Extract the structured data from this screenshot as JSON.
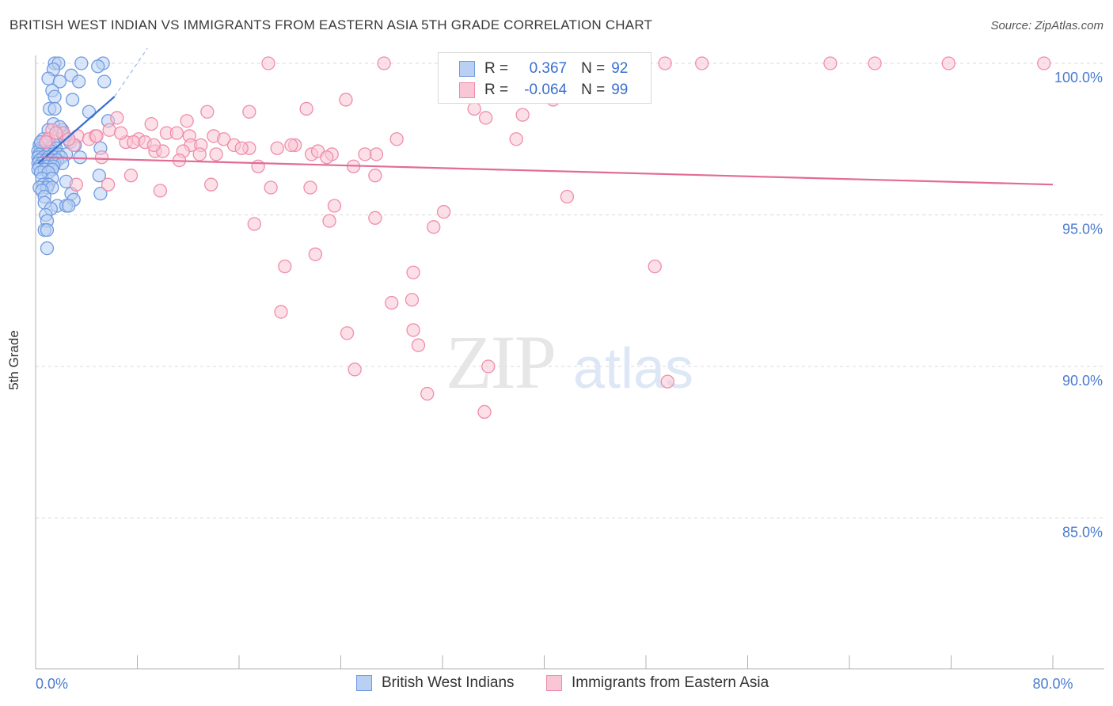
{
  "header": {
    "title": "BRITISH WEST INDIAN VS IMMIGRANTS FROM EASTERN ASIA 5TH GRADE CORRELATION CHART",
    "source": "Source: ZipAtlas.com"
  },
  "watermark": {
    "zip": "ZIP",
    "atlas": "atlas"
  },
  "stats_legend": {
    "rows": [
      {
        "r_label": "R =",
        "r_value": "0.367",
        "n_label": "N =",
        "n_value": "92",
        "color": "#6f9be0",
        "fill": "#b9d0f3"
      },
      {
        "r_label": "R =",
        "r_value": "-0.064",
        "n_label": "N =",
        "n_value": "99",
        "color": "#f08cab",
        "fill": "#f9c6d6"
      }
    ]
  },
  "bottom_legend": {
    "items": [
      {
        "label": "British West Indians",
        "color": "#6f9be0",
        "fill": "#b9d0f3"
      },
      {
        "label": "Immigrants from Eastern Asia",
        "color": "#f08cab",
        "fill": "#f9c6d6"
      }
    ]
  },
  "chart_data": {
    "type": "scatter",
    "title": "BRITISH WEST INDIAN VS IMMIGRANTS FROM EASTERN ASIA 5TH GRADE CORRELATION CHART",
    "xlabel": "",
    "ylabel": "5th Grade",
    "xlim": [
      0,
      80
    ],
    "ylim": [
      80.5,
      100.8
    ],
    "x_tick_labels": [
      {
        "value": 0,
        "label": "0.0%"
      },
      {
        "value": 80,
        "label": "80.0%"
      }
    ],
    "y_tick_labels": [
      {
        "value": 100,
        "label": "100.0%"
      },
      {
        "value": 95,
        "label": "95.0%"
      },
      {
        "value": 90,
        "label": "90.0%"
      },
      {
        "value": 85,
        "label": "85.0%"
      }
    ],
    "grid": true,
    "legend_position": "top-center",
    "series": [
      {
        "name": "British West Indians",
        "color": "#6f9be0",
        "fill": "#b9d0f3",
        "trend": {
          "x": [
            0.2,
            6.2
          ],
          "y": [
            96.7,
            98.9
          ],
          "extended_to": [
            8.8,
            100.5
          ]
        },
        "points": [
          [
            1.5,
            100.0
          ],
          [
            1.8,
            100.0
          ],
          [
            3.6,
            100.0
          ],
          [
            5.3,
            100.0
          ],
          [
            1.4,
            99.8
          ],
          [
            2.8,
            99.6
          ],
          [
            1.0,
            99.5
          ],
          [
            1.9,
            99.4
          ],
          [
            3.4,
            99.4
          ],
          [
            5.4,
            99.4
          ],
          [
            1.3,
            99.1
          ],
          [
            1.5,
            98.9
          ],
          [
            2.9,
            98.8
          ],
          [
            1.1,
            98.5
          ],
          [
            1.5,
            98.5
          ],
          [
            4.2,
            98.4
          ],
          [
            5.7,
            98.1
          ],
          [
            1.4,
            98.0
          ],
          [
            1.0,
            97.8
          ],
          [
            2.1,
            97.8
          ],
          [
            1.7,
            97.6
          ],
          [
            2.2,
            97.6
          ],
          [
            0.6,
            97.5
          ],
          [
            1.0,
            97.4
          ],
          [
            2.7,
            97.4
          ],
          [
            0.3,
            97.3
          ],
          [
            0.7,
            97.3
          ],
          [
            1.5,
            97.3
          ],
          [
            3.1,
            97.3
          ],
          [
            0.4,
            97.2
          ],
          [
            1.2,
            97.2
          ],
          [
            1.6,
            97.2
          ],
          [
            5.1,
            97.2
          ],
          [
            0.2,
            97.1
          ],
          [
            0.6,
            97.1
          ],
          [
            1.2,
            97.1
          ],
          [
            0.3,
            97.0
          ],
          [
            0.9,
            97.0
          ],
          [
            1.4,
            97.0
          ],
          [
            1.8,
            97.0
          ],
          [
            2.4,
            97.0
          ],
          [
            0.2,
            96.9
          ],
          [
            0.6,
            96.9
          ],
          [
            1.0,
            96.9
          ],
          [
            1.5,
            96.9
          ],
          [
            2.0,
            96.9
          ],
          [
            3.5,
            96.9
          ],
          [
            0.3,
            96.8
          ],
          [
            0.8,
            96.8
          ],
          [
            1.3,
            96.8
          ],
          [
            1.7,
            96.8
          ],
          [
            0.2,
            96.7
          ],
          [
            0.5,
            96.7
          ],
          [
            1.0,
            96.7
          ],
          [
            1.5,
            96.7
          ],
          [
            2.1,
            96.7
          ],
          [
            0.3,
            96.6
          ],
          [
            0.9,
            96.6
          ],
          [
            1.4,
            96.6
          ],
          [
            0.2,
            96.5
          ],
          [
            0.7,
            96.5
          ],
          [
            1.3,
            96.5
          ],
          [
            0.4,
            96.4
          ],
          [
            1.0,
            96.4
          ],
          [
            5.0,
            96.3
          ],
          [
            0.5,
            96.2
          ],
          [
            1.3,
            96.2
          ],
          [
            2.4,
            96.1
          ],
          [
            0.6,
            96.0
          ],
          [
            1.0,
            96.0
          ],
          [
            0.3,
            95.9
          ],
          [
            0.9,
            95.9
          ],
          [
            1.3,
            95.9
          ],
          [
            0.5,
            95.8
          ],
          [
            2.8,
            95.7
          ],
          [
            5.1,
            95.7
          ],
          [
            0.7,
            95.6
          ],
          [
            3.0,
            95.5
          ],
          [
            0.7,
            95.4
          ],
          [
            1.7,
            95.3
          ],
          [
            2.4,
            95.3
          ],
          [
            2.6,
            95.3
          ],
          [
            1.2,
            95.2
          ],
          [
            0.8,
            95.0
          ],
          [
            0.9,
            94.8
          ],
          [
            0.7,
            94.5
          ],
          [
            0.9,
            94.5
          ],
          [
            0.9,
            93.9
          ],
          [
            0.4,
            97.4
          ],
          [
            2.1,
            97.7
          ],
          [
            4.9,
            99.9
          ],
          [
            1.9,
            97.9
          ]
        ]
      },
      {
        "name": "Immigrants from Eastern Asia",
        "color": "#f08cab",
        "fill": "#f9c6d6",
        "trend": {
          "x": [
            0.5,
            80.0
          ],
          "y": [
            96.9,
            96.0
          ]
        },
        "points": [
          [
            18.3,
            100.0
          ],
          [
            27.4,
            100.0
          ],
          [
            40.3,
            100.0
          ],
          [
            52.4,
            100.0
          ],
          [
            62.5,
            100.0
          ],
          [
            66.0,
            100.0
          ],
          [
            71.8,
            100.0
          ],
          [
            79.3,
            100.0
          ],
          [
            44.0,
            100.0
          ],
          [
            49.5,
            100.0
          ],
          [
            24.4,
            98.8
          ],
          [
            40.7,
            98.8
          ],
          [
            21.3,
            98.5
          ],
          [
            34.5,
            98.5
          ],
          [
            13.5,
            98.4
          ],
          [
            16.8,
            98.4
          ],
          [
            38.3,
            98.3
          ],
          [
            6.4,
            98.2
          ],
          [
            11.9,
            98.1
          ],
          [
            35.4,
            98.2
          ],
          [
            9.1,
            98.0
          ],
          [
            1.3,
            97.8
          ],
          [
            2.2,
            97.7
          ],
          [
            5.8,
            97.8
          ],
          [
            10.3,
            97.7
          ],
          [
            11.1,
            97.7
          ],
          [
            12.1,
            97.6
          ],
          [
            14.0,
            97.6
          ],
          [
            14.8,
            97.5
          ],
          [
            3.3,
            97.6
          ],
          [
            4.7,
            97.6
          ],
          [
            8.1,
            97.5
          ],
          [
            28.4,
            97.5
          ],
          [
            1.0,
            97.5
          ],
          [
            7.1,
            97.4
          ],
          [
            7.7,
            97.4
          ],
          [
            8.6,
            97.4
          ],
          [
            12.2,
            97.3
          ],
          [
            13.0,
            97.3
          ],
          [
            15.6,
            97.3
          ],
          [
            16.8,
            97.2
          ],
          [
            19.0,
            97.2
          ],
          [
            20.4,
            97.3
          ],
          [
            0.8,
            97.4
          ],
          [
            4.2,
            97.5
          ],
          [
            9.4,
            97.1
          ],
          [
            10.0,
            97.1
          ],
          [
            11.6,
            97.1
          ],
          [
            12.9,
            97.0
          ],
          [
            14.2,
            97.0
          ],
          [
            21.7,
            97.0
          ],
          [
            22.2,
            97.1
          ],
          [
            23.3,
            97.0
          ],
          [
            25.9,
            97.0
          ],
          [
            26.8,
            97.0
          ],
          [
            22.9,
            96.9
          ],
          [
            25.0,
            96.6
          ],
          [
            11.3,
            96.8
          ],
          [
            17.5,
            96.6
          ],
          [
            5.2,
            96.9
          ],
          [
            26.7,
            96.3
          ],
          [
            7.5,
            96.3
          ],
          [
            3.2,
            96.0
          ],
          [
            5.7,
            96.0
          ],
          [
            13.8,
            96.0
          ],
          [
            18.5,
            95.9
          ],
          [
            21.6,
            95.9
          ],
          [
            9.8,
            95.8
          ],
          [
            41.8,
            95.6
          ],
          [
            23.5,
            95.3
          ],
          [
            32.1,
            95.1
          ],
          [
            23.1,
            94.8
          ],
          [
            26.7,
            94.9
          ],
          [
            17.2,
            94.7
          ],
          [
            31.3,
            94.6
          ],
          [
            22.0,
            93.7
          ],
          [
            19.6,
            93.3
          ],
          [
            48.7,
            93.3
          ],
          [
            29.7,
            93.1
          ],
          [
            29.6,
            92.2
          ],
          [
            28.0,
            92.1
          ],
          [
            19.3,
            91.8
          ],
          [
            29.7,
            91.2
          ],
          [
            24.5,
            91.1
          ],
          [
            30.1,
            90.7
          ],
          [
            35.6,
            90.0
          ],
          [
            25.1,
            89.9
          ],
          [
            49.7,
            89.5
          ],
          [
            30.8,
            89.1
          ],
          [
            35.3,
            88.5
          ],
          [
            3.0,
            97.3
          ],
          [
            6.7,
            97.7
          ],
          [
            2.6,
            97.5
          ],
          [
            9.3,
            97.3
          ],
          [
            16.2,
            97.2
          ],
          [
            20.1,
            97.3
          ],
          [
            1.6,
            97.7
          ],
          [
            4.8,
            97.6
          ],
          [
            37.8,
            97.5
          ]
        ]
      }
    ]
  }
}
